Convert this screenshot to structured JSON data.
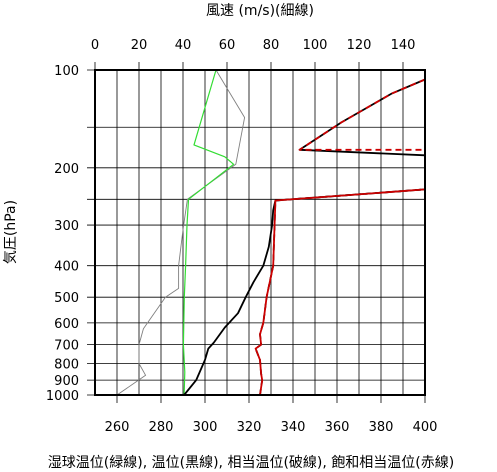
{
  "chart_data": {
    "type": "line",
    "top_axis": {
      "label": "風速 (m/s)(細線)",
      "range": [
        0,
        150
      ],
      "ticks": [
        0,
        20,
        40,
        60,
        80,
        100,
        120,
        140
      ]
    },
    "bottom_axis": {
      "label": "湿球温位(緑線), 温位(黒線), 相当温位(破線), 飽和相当温位(赤線)",
      "range": [
        250,
        400
      ],
      "ticks": [
        260,
        280,
        300,
        320,
        340,
        360,
        380,
        400
      ]
    },
    "left_axis": {
      "label": "気圧(hPa)",
      "scale": "log",
      "range": [
        1000,
        100
      ],
      "ticks": [
        100,
        200,
        300,
        400,
        500,
        600,
        700,
        800,
        900,
        1000
      ],
      "grid_lines": [
        100,
        150,
        200,
        250,
        300,
        400,
        500,
        600,
        700,
        800,
        900,
        1000
      ]
    },
    "grid": true,
    "series": [
      {
        "key": "wind_speed",
        "axis": "top",
        "color": "#808080",
        "style": "thin",
        "points": [
          [
            10,
            1000
          ],
          [
            23,
            870
          ],
          [
            20,
            800
          ],
          [
            20,
            700
          ],
          [
            22,
            625
          ],
          [
            32,
            500
          ],
          [
            38,
            470
          ],
          [
            38,
            400
          ],
          [
            40,
            310
          ],
          [
            42,
            250
          ],
          [
            64,
            195
          ],
          [
            68,
            140
          ],
          [
            55,
            100
          ]
        ]
      },
      {
        "key": "wet_bulb_potential_temperature",
        "axis": "bottom",
        "color": "#33dd33",
        "style": "solid",
        "points": [
          [
            290.5,
            1000
          ],
          [
            290.8,
            850
          ],
          [
            290.2,
            700
          ],
          [
            290.6,
            500
          ],
          [
            291.2,
            400
          ],
          [
            291.8,
            300
          ],
          [
            292.5,
            250
          ],
          [
            313,
            195
          ],
          [
            309,
            185
          ],
          [
            295,
            170
          ],
          [
            305,
            100
          ]
        ]
      },
      {
        "key": "potential_temperature",
        "axis": "bottom",
        "color": "#000000",
        "style": "solid",
        "points": [
          [
            290.5,
            1000
          ],
          [
            296,
            900
          ],
          [
            300,
            780
          ],
          [
            301.5,
            720
          ],
          [
            304,
            690
          ],
          [
            309,
            620
          ],
          [
            315,
            560
          ],
          [
            318.5,
            500
          ],
          [
            322,
            450
          ],
          [
            326.5,
            400
          ],
          [
            329,
            350
          ],
          [
            330.5,
            300
          ],
          [
            331,
            270
          ],
          [
            332,
            252
          ],
          [
            400,
            233
          ]
        ]
      },
      {
        "key": "equivalent_potential_temperature",
        "axis": "bottom",
        "color": "#000000",
        "style": "dashed",
        "points": [
          [
            325,
            1000
          ],
          [
            326,
            900
          ],
          [
            325.5,
            860
          ],
          [
            325,
            780
          ],
          [
            323,
            720
          ],
          [
            325.5,
            700
          ],
          [
            325,
            650
          ],
          [
            326.5,
            600
          ],
          [
            328,
            500
          ],
          [
            331,
            400
          ],
          [
            332,
            252
          ],
          [
            400,
            233
          ]
        ]
      },
      {
        "key": "saturated_equivalent_potential_temperature",
        "axis": "bottom",
        "color": "#cc0000",
        "style": "solid",
        "points": [
          [
            325,
            1000
          ],
          [
            326,
            900
          ],
          [
            325.5,
            860
          ],
          [
            325,
            780
          ],
          [
            323,
            720
          ],
          [
            325.5,
            700
          ],
          [
            325,
            650
          ],
          [
            326.5,
            600
          ],
          [
            328,
            500
          ],
          [
            331,
            400
          ],
          [
            332,
            252
          ],
          [
            400,
            233
          ]
        ]
      },
      {
        "key": "upper_wind_black",
        "axis": "bottom",
        "color": "#000000",
        "style": "solid",
        "points": [
          [
            400,
            107
          ],
          [
            385,
            118
          ],
          [
            362,
            145
          ],
          [
            343,
            176
          ],
          [
            400,
            183
          ]
        ]
      },
      {
        "key": "upper_saturated_red",
        "axis": "bottom",
        "color": "#cc0000",
        "style": "dashed",
        "points": [
          [
            400,
            107
          ],
          [
            385,
            118
          ],
          [
            362,
            145
          ],
          [
            343,
            176
          ],
          [
            400,
            176
          ]
        ]
      }
    ]
  }
}
